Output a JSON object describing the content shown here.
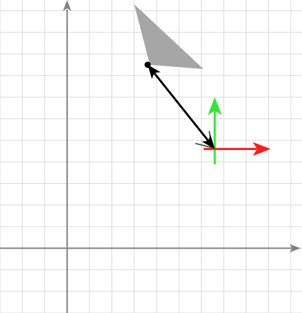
{
  "canvas": {
    "background": "#ffffff",
    "grid_color": "#d9d9d9",
    "axis_color": "#808080",
    "grid_on": true,
    "grid_step_units": 1
  },
  "chart_data": {
    "type": "diagram",
    "view_range": {
      "x": [
        -3,
        10.5
      ],
      "y": [
        -3,
        11.5
      ]
    },
    "axes": {
      "x_axis_visible": true,
      "y_axis_visible": true,
      "arrowheads": true
    },
    "triangle": {
      "vertices": [
        [
          3,
          11.3
        ],
        [
          3.7,
          8.5
        ],
        [
          6.1,
          8.3
        ]
      ],
      "fill": "#a6a6a6"
    },
    "point": {
      "position": [
        3.6,
        8.5
      ],
      "color": "#000000"
    },
    "vector": {
      "from": [
        6.6,
        4.6
      ],
      "to": [
        3.6,
        8.5
      ],
      "color": "#000000",
      "double_headed": true
    },
    "local_frame": {
      "origin": [
        6.6,
        4.6
      ],
      "x_axis": {
        "end": [
          9.1,
          4.6
        ],
        "color": "#ff1a1a"
      },
      "y_axis": {
        "end": [
          6.6,
          7.0
        ],
        "color": "#33e633"
      },
      "rotation_marker_color": "#555555"
    }
  }
}
